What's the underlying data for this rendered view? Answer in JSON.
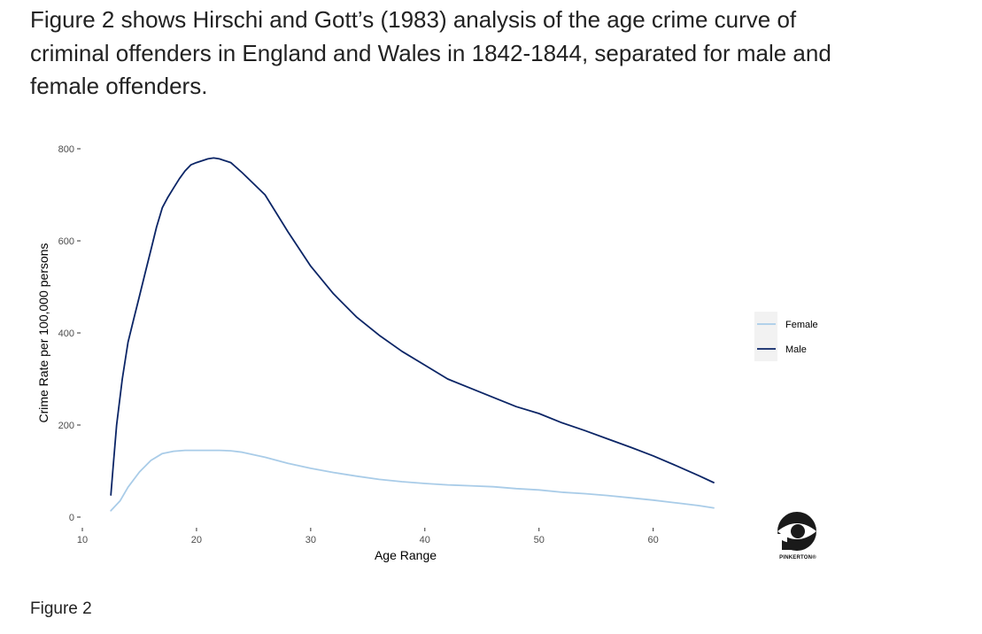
{
  "intro_text": "Figure 2 shows Hirschi and Gott’s (1983) analysis of the age crime curve of criminal offenders in England and Wales in 1842-1844, separated for male and female offenders.",
  "caption": "Figure 2",
  "logo_text": "PINKERTON®",
  "chart_data": {
    "type": "line",
    "xlabel": "Age Range",
    "ylabel": "Crime Rate per 100,000 persons",
    "xlim": [
      10,
      66
    ],
    "ylim": [
      0,
      800
    ],
    "xticks": [
      10,
      20,
      30,
      40,
      50,
      60
    ],
    "yticks": [
      0,
      200,
      400,
      600,
      800
    ],
    "grid": false,
    "legend_position": "right",
    "series": [
      {
        "name": "Female",
        "color": "#a9cce8",
        "x": [
          12.5,
          13.3,
          14,
          15,
          16,
          17,
          18,
          19,
          20,
          21,
          22,
          23,
          24,
          26,
          28,
          30,
          32,
          34,
          36,
          38,
          40,
          42,
          44,
          46,
          48,
          50,
          52,
          54,
          56,
          58,
          60,
          62,
          64,
          65.3
        ],
        "y": [
          14,
          35,
          65,
          98,
          123,
          138,
          143,
          145,
          145,
          145,
          145,
          144,
          141,
          130,
          117,
          106,
          97,
          89,
          82,
          77,
          73,
          70,
          68,
          66,
          62,
          59,
          54,
          51,
          47,
          42,
          37,
          31,
          25,
          20
        ]
      },
      {
        "name": "Male",
        "color": "#0b2566",
        "x": [
          12.5,
          12.7,
          13,
          13.5,
          14,
          14.5,
          15,
          15.5,
          16,
          16.5,
          17,
          17.5,
          18,
          18.5,
          19,
          19.5,
          20,
          21,
          21.5,
          22,
          23,
          24,
          26,
          28,
          30,
          32,
          34,
          36,
          38,
          40,
          42,
          44,
          46,
          48,
          50,
          52,
          54,
          56,
          58,
          60,
          62,
          64,
          65.3
        ],
        "y": [
          48,
          110,
          200,
          300,
          380,
          430,
          480,
          530,
          580,
          630,
          672,
          695,
          715,
          735,
          752,
          765,
          770,
          778,
          780,
          778,
          770,
          748,
          700,
          620,
          545,
          485,
          435,
          395,
          360,
          330,
          300,
          280,
          260,
          240,
          225,
          205,
          188,
          170,
          152,
          133,
          112,
          90,
          75
        ]
      }
    ]
  }
}
